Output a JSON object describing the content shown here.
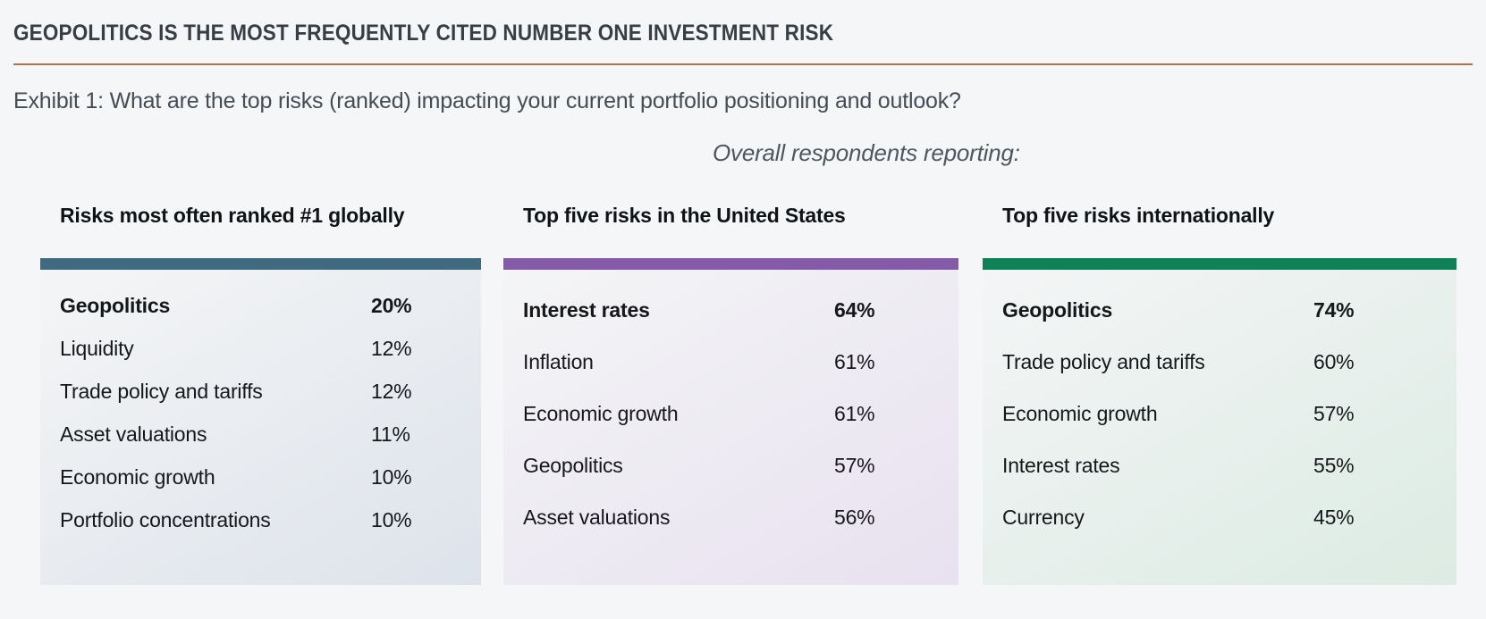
{
  "page": {
    "background_color": "#f4f6f8"
  },
  "header": {
    "title": "GEOPOLITICS IS THE MOST FREQUENTLY CITED NUMBER ONE INVESTMENT RISK",
    "rule_color": "#a5784b",
    "exhibit_caption": "Exhibit 1: What are the top risks (ranked) impacting your current portfolio positioning and outlook?",
    "respondents_note": "Overall respondents reporting:"
  },
  "chart_data": {
    "type": "table",
    "title": "Exhibit 1: What are the top risks (ranked) impacting your current portfolio positioning and outlook?",
    "note": "Overall respondents reporting:",
    "tables": [
      {
        "title": "Risks most often ranked #1 globally",
        "accent_color": "#3f6b80",
        "tint_color": "#dde3eb",
        "columns": [
          "risk",
          "percent"
        ],
        "rows": [
          {
            "label": "Geopolitics",
            "value": "20%"
          },
          {
            "label": "Liquidity",
            "value": "12%"
          },
          {
            "label": "Trade policy and tariffs",
            "value": "12%"
          },
          {
            "label": "Asset valuations",
            "value": "11%"
          },
          {
            "label": "Economic growth",
            "value": "10%"
          },
          {
            "label": "Portfolio concentrations",
            "value": "10%"
          }
        ]
      },
      {
        "title": "Top five risks in the United States",
        "accent_color": "#855aa8",
        "tint_color": "#e8e1f0",
        "columns": [
          "risk",
          "percent"
        ],
        "rows": [
          {
            "label": "Interest rates",
            "value": "64%"
          },
          {
            "label": "Inflation",
            "value": "61%"
          },
          {
            "label": "Economic growth",
            "value": "61%"
          },
          {
            "label": "Geopolitics",
            "value": "57%"
          },
          {
            "label": "Asset valuations",
            "value": "56%"
          }
        ]
      },
      {
        "title": "Top five risks internationally",
        "accent_color": "#0e8157",
        "tint_color": "#dcebe3",
        "columns": [
          "risk",
          "percent"
        ],
        "rows": [
          {
            "label": "Geopolitics",
            "value": "74%"
          },
          {
            "label": "Trade policy and tariffs",
            "value": "60%"
          },
          {
            "label": "Economic growth",
            "value": "57%"
          },
          {
            "label": "Interest rates",
            "value": "55%"
          },
          {
            "label": "Currency",
            "value": "45%"
          }
        ]
      }
    ]
  }
}
